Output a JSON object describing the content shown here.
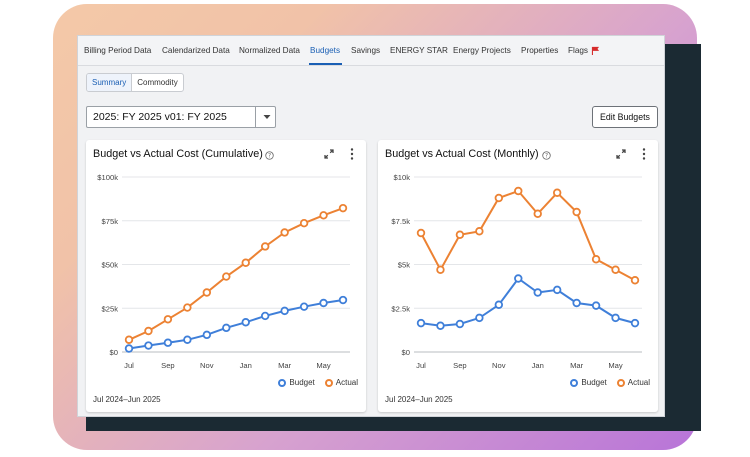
{
  "tabs": [
    {
      "label": "Billing Period Data"
    },
    {
      "label": "Calendarized Data"
    },
    {
      "label": "Normalized Data"
    },
    {
      "label": "Budgets"
    },
    {
      "label": "Savings"
    },
    {
      "label": "ENERGY STAR"
    },
    {
      "label": "Energy Projects"
    },
    {
      "label": "Properties"
    },
    {
      "label": "Flags"
    }
  ],
  "active_tab": "Budgets",
  "subtabs": [
    {
      "label": "Summary"
    },
    {
      "label": "Commodity"
    }
  ],
  "budget_select": {
    "value": "2025: FY 2025 v01: FY 2025"
  },
  "edit_button": {
    "label": "Edit Budgets"
  },
  "colors": {
    "budget": "#3f7fd9",
    "actual": "#ec8233",
    "accent": "#1a5fb4",
    "flag": "#d62b2b"
  },
  "legend": {
    "budget": "Budget",
    "actual": "Actual"
  },
  "cards": [
    {
      "title": "Budget vs Actual Cost (Cumulative)",
      "date_range": "Jul 2024–Jun 2025"
    },
    {
      "title": "Budget vs Actual Cost (Monthly)",
      "date_range": "Jul 2024–Jun 2025"
    }
  ],
  "chart_data": [
    {
      "type": "line",
      "title": "Budget vs Actual Cost (Cumulative)",
      "x": [
        "Jul 2024",
        "Aug 2024",
        "Sep 2024",
        "Oct 2024",
        "Nov 2024",
        "Dec 2024",
        "Jan 2025",
        "Feb 2025",
        "Mar 2025",
        "Apr 2025",
        "May 2025",
        "Jun 2025"
      ],
      "xtick_labels": [
        "Jul",
        "",
        "Sep",
        "",
        "Nov",
        "",
        "Jan",
        "",
        "Mar",
        "",
        "May",
        ""
      ],
      "ytick_labels": [
        "$0",
        "$25k",
        "$50k",
        "$75k",
        "$100k"
      ],
      "ylim": [
        0,
        100000
      ],
      "grid": true,
      "legend_position": "bottom-right",
      "series": [
        {
          "name": "Budget",
          "values": [
            2000,
            3700,
            5300,
            7000,
            9800,
            13800,
            17000,
            20600,
            23500,
            25900,
            28000,
            29700
          ]
        },
        {
          "name": "Actual",
          "values": [
            7000,
            12000,
            18700,
            25400,
            34000,
            43100,
            51000,
            60300,
            68300,
            73600,
            78100,
            82200
          ]
        }
      ]
    },
    {
      "type": "line",
      "title": "Budget vs Actual Cost (Monthly)",
      "x": [
        "Jul 2024",
        "Aug 2024",
        "Sep 2024",
        "Oct 2024",
        "Nov 2024",
        "Dec 2024",
        "Jan 2025",
        "Feb 2025",
        "Mar 2025",
        "Apr 2025",
        "May 2025",
        "Jun 2025"
      ],
      "xtick_labels": [
        "Jul",
        "",
        "Sep",
        "",
        "Nov",
        "",
        "Jan",
        "",
        "Mar",
        "",
        "May",
        ""
      ],
      "ytick_labels": [
        "$0",
        "$2.5k",
        "$5k",
        "$7.5k",
        "$10k"
      ],
      "ylim": [
        0,
        10000
      ],
      "grid": true,
      "legend_position": "bottom-right",
      "series": [
        {
          "name": "Budget",
          "values": [
            1650,
            1500,
            1600,
            1950,
            2700,
            4200,
            3400,
            3550,
            2800,
            2650,
            1950,
            1650
          ]
        },
        {
          "name": "Actual",
          "values": [
            6800,
            4700,
            6700,
            6900,
            8800,
            9200,
            7900,
            9100,
            8000,
            5300,
            4700,
            4100
          ]
        }
      ]
    }
  ]
}
